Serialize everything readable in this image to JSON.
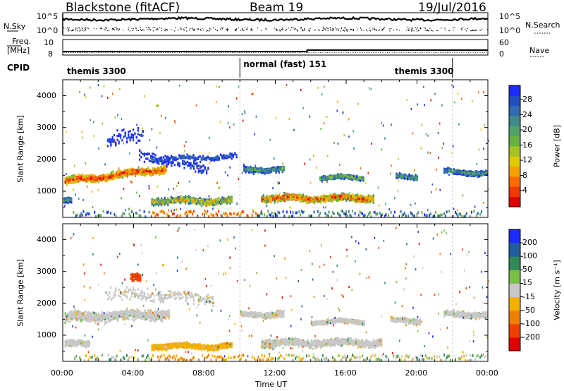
{
  "header": {
    "radar": "Blackstone (fitACF)",
    "beam": "Beam 19",
    "date": "19/Jul/2016"
  },
  "labels": {
    "nsky": "N.Sky",
    "nsearch": "N.Search",
    "freq": "Freq.",
    "mhz": "[MHz]",
    "cpid": "CPID",
    "nave": "Nave",
    "nsky_ticks": [
      "10^5",
      "10^0"
    ],
    "freq_ticks": [
      "10",
      "8"
    ],
    "nave_ticks": [
      "60",
      "0"
    ]
  },
  "cpid_segments": [
    {
      "start_hour": 0.0,
      "end_hour": 10.0,
      "label": "themis 3300"
    },
    {
      "start_hour": 10.0,
      "end_hour": 22.0,
      "label": "normal (fast) 151"
    },
    {
      "start_hour": 22.0,
      "end_hour": 24.0,
      "label": "themis 3300"
    }
  ],
  "chart_data": [
    {
      "type": "heatmap",
      "name": "power",
      "ylabel": "Slant Range [km]",
      "ylim": [
        180,
        4500
      ],
      "yticks": [
        1000,
        2000,
        3000,
        4000
      ],
      "xlim": [
        0,
        24
      ],
      "colorbar": {
        "label": "Power [dB]",
        "ticks": [
          "4",
          "8",
          "12",
          "16",
          "20",
          "24",
          "28"
        ],
        "colors": [
          "#1a2bff",
          "#1f4fc0",
          "#2e6bb0",
          "#3f8a8a",
          "#4fa36a",
          "#67b340",
          "#a6c421",
          "#e1c800",
          "#f5a000",
          "#ff6a00",
          "#f03a00",
          "#e00000"
        ]
      }
    },
    {
      "type": "heatmap",
      "name": "velocity",
      "ylabel": "Slant Range [km]",
      "ylim": [
        180,
        4500
      ],
      "yticks": [
        1000,
        2000,
        3000,
        4000
      ],
      "xlabel": "Time UT",
      "xlim": [
        0,
        24
      ],
      "xticks": [
        "00:00",
        "04:00",
        "08:00",
        "12:00",
        "16:00",
        "20:00",
        "00:00"
      ],
      "colorbar": {
        "label": "Velocity [m s⁻¹]",
        "ticks": [
          "200",
          "100",
          "50",
          "15",
          "-15",
          "-50",
          "-100",
          "-200"
        ],
        "colors": [
          "#1a2bff",
          "#2060a0",
          "#2e8b57",
          "#76c043",
          "#c8c8c8",
          "#f5b000",
          "#f08000",
          "#f04000",
          "#e00000"
        ]
      }
    }
  ]
}
